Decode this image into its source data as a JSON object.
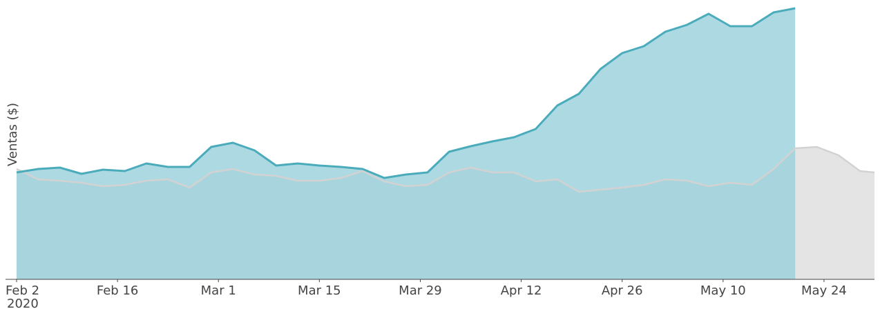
{
  "chart_data": {
    "type": "area",
    "y_label": "Ventas ($)",
    "x": [
      "2020-02-02",
      "2020-02-05",
      "2020-02-08",
      "2020-02-11",
      "2020-02-14",
      "2020-02-17",
      "2020-02-20",
      "2020-02-23",
      "2020-02-26",
      "2020-02-29",
      "2020-03-03",
      "2020-03-06",
      "2020-03-09",
      "2020-03-12",
      "2020-03-15",
      "2020-03-18",
      "2020-03-21",
      "2020-03-24",
      "2020-03-27",
      "2020-03-30",
      "2020-04-02",
      "2020-04-05",
      "2020-04-08",
      "2020-04-11",
      "2020-04-14",
      "2020-04-17",
      "2020-04-20",
      "2020-04-23",
      "2020-04-26",
      "2020-04-29",
      "2020-05-02",
      "2020-05-05",
      "2020-05-08",
      "2020-05-11",
      "2020-05-14",
      "2020-05-17",
      "2020-05-20",
      "2020-05-23",
      "2020-05-26",
      "2020-05-29",
      "2020-05-31"
    ],
    "series": [
      {
        "color": "#d2d2d2",
        "fill": "#e4e4e4",
        "values": [
          160,
          145,
          143,
          140,
          135,
          137,
          143,
          145,
          133,
          155,
          160,
          152,
          150,
          143,
          143,
          147,
          157,
          142,
          135,
          137,
          155,
          162,
          155,
          155,
          142,
          145,
          127,
          130,
          133,
          137,
          145,
          143,
          135,
          140,
          137,
          160,
          190,
          192,
          180,
          157,
          155
        ]
      },
      {
        "color": "#4aabbb",
        "fill": "#99d0dc",
        "values": [
          155,
          160,
          162,
          153,
          159,
          157,
          168,
          163,
          163,
          192,
          198,
          187,
          165,
          168,
          165,
          163,
          160,
          147,
          152,
          155,
          185,
          193,
          200,
          206,
          218,
          252,
          269,
          305,
          328,
          338,
          359,
          369,
          385,
          367,
          367,
          387,
          393,
          null,
          null,
          null,
          null
        ]
      }
    ],
    "xlim": [
      "2020-02-02",
      "2020-05-31"
    ],
    "ylim": [
      0,
      400
    ],
    "xticks": [
      {
        "value": "2020-02-02",
        "label": "Feb 2"
      },
      {
        "value": "2020-02-16",
        "label": "Feb 16"
      },
      {
        "value": "2020-03-01",
        "label": "Mar 1"
      },
      {
        "value": "2020-03-15",
        "label": "Mar 15"
      },
      {
        "value": "2020-03-29",
        "label": "Mar 29"
      },
      {
        "value": "2020-04-12",
        "label": "Apr 12"
      },
      {
        "value": "2020-04-26",
        "label": "Apr 26"
      },
      {
        "value": "2020-05-10",
        "label": "May 10"
      },
      {
        "value": "2020-05-24",
        "label": "May 24"
      }
    ],
    "x_year_label": "2020"
  }
}
